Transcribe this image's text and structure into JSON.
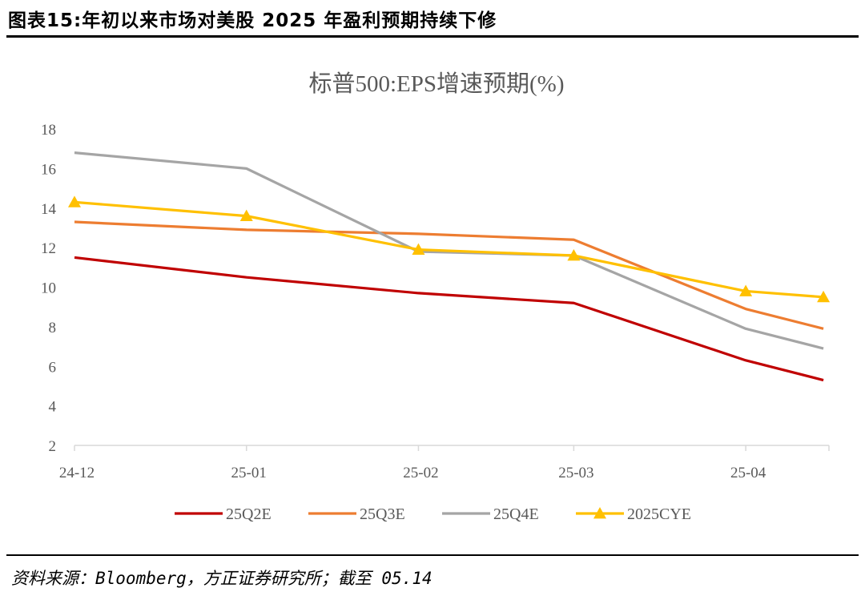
{
  "figure_title": "图表15:年初以来市场对美股 2025 年盈利预期持续下修",
  "source": "资料来源：Bloomberg，方正证券研究所；截至 05.14",
  "chart_data": {
    "type": "line",
    "title": "标普500:EPS增速预期(%)",
    "xlabel": "",
    "ylabel": "",
    "ylim": [
      2,
      18
    ],
    "yticks": [
      2,
      4,
      6,
      8,
      10,
      12,
      14,
      16,
      18
    ],
    "xlim": [
      "2024-12-01",
      "2025-04-16"
    ],
    "xticks": [
      {
        "date": "2024-12-01",
        "label": "24-12"
      },
      {
        "date": "2025-01-01",
        "label": "25-01"
      },
      {
        "date": "2025-02-01",
        "label": "25-02"
      },
      {
        "date": "2025-03-01",
        "label": "25-03"
      },
      {
        "date": "2025-04-01",
        "label": "25-04"
      }
    ],
    "x": [
      "2024-12-01",
      "2025-01-01",
      "2025-02-01",
      "2025-03-01",
      "2025-04-01",
      "2025-04-15"
    ],
    "grid": false,
    "legend": "bottom",
    "series": [
      {
        "name": "25Q2E",
        "color": "#C00000",
        "marker": "none",
        "values": [
          11.5,
          10.5,
          9.7,
          9.2,
          6.3,
          5.3
        ]
      },
      {
        "name": "25Q3E",
        "color": "#ED7D31",
        "marker": "none",
        "values": [
          13.3,
          12.9,
          12.7,
          12.4,
          8.9,
          7.9
        ]
      },
      {
        "name": "25Q4E",
        "color": "#A5A5A5",
        "marker": "none",
        "values": [
          16.8,
          16.0,
          11.8,
          11.6,
          7.9,
          6.9
        ]
      },
      {
        "name": "2025CYE",
        "color": "#FFC000",
        "marker": "triangle",
        "values": [
          14.3,
          13.6,
          11.9,
          11.6,
          9.8,
          9.5
        ]
      }
    ]
  }
}
